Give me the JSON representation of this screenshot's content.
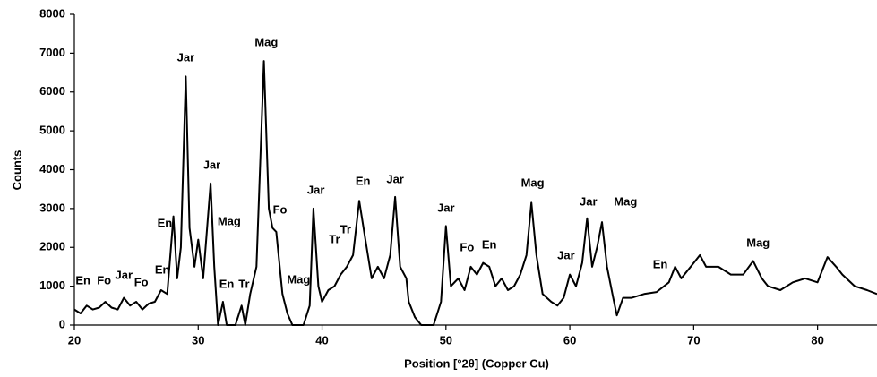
{
  "chart_data": {
    "type": "line",
    "xlabel": "Position [°2θ] (Copper Cu)",
    "ylabel": "Counts",
    "color": "#000000",
    "grid": false,
    "xlim": [
      20,
      84.8
    ],
    "xticks": [
      20,
      30,
      40,
      50,
      60,
      70,
      80
    ],
    "ylim": [
      0,
      8000
    ],
    "yticks": [
      0,
      1000,
      2000,
      3000,
      4000,
      5000,
      6000,
      7000,
      8000
    ],
    "x": [
      20,
      20.5,
      21,
      21.5,
      22,
      22.5,
      23,
      23.5,
      24,
      24.5,
      25,
      25.5,
      26,
      26.5,
      27,
      27.5,
      28,
      28.3,
      28.6,
      29,
      29.3,
      29.7,
      30,
      30.4,
      31,
      31.3,
      31.6,
      32,
      32.3,
      33,
      33.5,
      33.8,
      34.2,
      34.7,
      35.3,
      35.7,
      36,
      36.3,
      36.8,
      37.2,
      37.6,
      38.5,
      39,
      39.3,
      39.7,
      40,
      40.5,
      41,
      41.5,
      42,
      42.5,
      43,
      43.5,
      44,
      44.5,
      45,
      45.5,
      45.9,
      46.3,
      46.8,
      47,
      47.5,
      48,
      49,
      49.6,
      50,
      50.4,
      51,
      51.5,
      52,
      52.5,
      53,
      53.5,
      54,
      54.5,
      55,
      55.5,
      56,
      56.5,
      56.9,
      57.3,
      57.8,
      58.5,
      59,
      59.5,
      60,
      60.5,
      61,
      61.4,
      61.8,
      62.2,
      62.6,
      63,
      63.5,
      63.8,
      64.3,
      65,
      66,
      67,
      68,
      68.5,
      69,
      70,
      70.5,
      71,
      72,
      73,
      74,
      74.8,
      75.5,
      76,
      77,
      78,
      79,
      80,
      80.8,
      81.5,
      82,
      83,
      84,
      84.8
    ],
    "values": [
      400,
      300,
      500,
      400,
      450,
      600,
      450,
      400,
      700,
      500,
      600,
      400,
      550,
      600,
      900,
      800,
      2800,
      1200,
      2000,
      6400,
      2500,
      1500,
      2200,
      1200,
      3650,
      1500,
      0,
      600,
      0,
      0,
      500,
      0,
      800,
      1500,
      6800,
      3000,
      2500,
      2400,
      800,
      300,
      0,
      0,
      500,
      3000,
      1000,
      600,
      900,
      1000,
      1300,
      1500,
      1800,
      3200,
      2200,
      1200,
      1500,
      1200,
      1800,
      3300,
      1500,
      1200,
      600,
      200,
      0,
      0,
      600,
      2550,
      1000,
      1200,
      900,
      1500,
      1300,
      1600,
      1500,
      1000,
      1200,
      900,
      1000,
      1300,
      1800,
      3150,
      1800,
      800,
      600,
      500,
      700,
      1300,
      1000,
      1600,
      2750,
      1500,
      2000,
      2650,
      1500,
      700,
      250,
      700,
      700,
      800,
      850,
      1100,
      1500,
      1200,
      1600,
      1800,
      1500,
      1500,
      1300,
      1300,
      1650,
      1200,
      1000,
      900,
      1100,
      1200,
      1100,
      1750,
      1500,
      1300,
      1000,
      900,
      800
    ],
    "annotations": [
      {
        "text": "En",
        "x": 20.7,
        "y": 1130
      },
      {
        "text": "Fo",
        "x": 22.4,
        "y": 1130
      },
      {
        "text": "Jar",
        "x": 24.0,
        "y": 1270
      },
      {
        "text": "Fo",
        "x": 25.4,
        "y": 1080
      },
      {
        "text": "En",
        "x": 27.1,
        "y": 1400
      },
      {
        "text": "En",
        "x": 27.3,
        "y": 2600
      },
      {
        "text": "Jar",
        "x": 29.0,
        "y": 6870
      },
      {
        "text": "Jar",
        "x": 31.1,
        "y": 4100
      },
      {
        "text": "Mag",
        "x": 32.5,
        "y": 2650
      },
      {
        "text": "En",
        "x": 32.3,
        "y": 1040
      },
      {
        "text": "Tr",
        "x": 33.7,
        "y": 1040
      },
      {
        "text": "Mag",
        "x": 35.5,
        "y": 7260
      },
      {
        "text": "Fo",
        "x": 36.6,
        "y": 2950
      },
      {
        "text": "Mag",
        "x": 38.1,
        "y": 1150
      },
      {
        "text": "Jar",
        "x": 39.5,
        "y": 3460
      },
      {
        "text": "Tr",
        "x": 41.0,
        "y": 2190
      },
      {
        "text": "Tr",
        "x": 41.9,
        "y": 2440
      },
      {
        "text": "En",
        "x": 43.3,
        "y": 3690
      },
      {
        "text": "Jar",
        "x": 45.9,
        "y": 3730
      },
      {
        "text": "Jar",
        "x": 50.0,
        "y": 3000
      },
      {
        "text": "Fo",
        "x": 51.7,
        "y": 1980
      },
      {
        "text": "En",
        "x": 53.5,
        "y": 2050
      },
      {
        "text": "Mag",
        "x": 57.0,
        "y": 3640
      },
      {
        "text": "Jar",
        "x": 59.7,
        "y": 1770
      },
      {
        "text": "Jar",
        "x": 61.5,
        "y": 3160
      },
      {
        "text": "Mag",
        "x": 64.5,
        "y": 3160
      },
      {
        "text": "En",
        "x": 67.3,
        "y": 1540
      },
      {
        "text": "Mag",
        "x": 75.2,
        "y": 2100
      }
    ]
  }
}
